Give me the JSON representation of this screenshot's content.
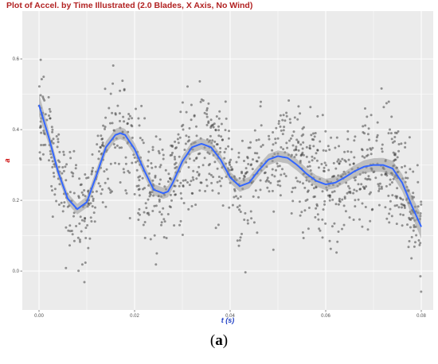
{
  "chart_data": {
    "type": "scatter",
    "title": "Plot of Accel. by Time Illustrated (2.0 Blades, X Axis, No Wind)",
    "xlabel": "t (s)",
    "ylabel": "a",
    "xlim": [
      -0.0035,
      0.0825
    ],
    "ylim": [
      -0.11,
      0.735
    ],
    "x_ticks": [
      0.0,
      0.02,
      0.04,
      0.06,
      0.08
    ],
    "x_tick_labels": [
      "0.00",
      "0.02",
      "0.04",
      "0.06",
      "0.08"
    ],
    "y_ticks": [
      0.0,
      0.2,
      0.4,
      0.6
    ],
    "y_tick_labels": [
      "0.0",
      "0.2",
      "0.4",
      "0.6"
    ],
    "grid": true,
    "colors": {
      "panel": "#ebebeb",
      "grid": "#ffffff",
      "points": "#333333",
      "smooth_line": "#3366ff",
      "confidence_band": "#999999",
      "title": "#b22222",
      "x_label": "#1f3fc4",
      "y_label": "#cc0000"
    },
    "series": [
      {
        "type": "scatter",
        "x_range": [
          0.0,
          0.08
        ],
        "point_count": 1200,
        "y_spread": 0.115
      },
      {
        "type": "smooth",
        "x": [
          0.0,
          0.002,
          0.004,
          0.006,
          0.008,
          0.01,
          0.012,
          0.014,
          0.016,
          0.017,
          0.018,
          0.02,
          0.022,
          0.024,
          0.026,
          0.027,
          0.028,
          0.03,
          0.032,
          0.034,
          0.036,
          0.038,
          0.04,
          0.042,
          0.044,
          0.046,
          0.048,
          0.05,
          0.052,
          0.054,
          0.056,
          0.058,
          0.06,
          0.062,
          0.064,
          0.066,
          0.068,
          0.07,
          0.072,
          0.074,
          0.076,
          0.078,
          0.08
        ],
        "y": [
          0.47,
          0.38,
          0.28,
          0.205,
          0.175,
          0.195,
          0.27,
          0.35,
          0.385,
          0.39,
          0.385,
          0.345,
          0.285,
          0.23,
          0.22,
          0.225,
          0.25,
          0.31,
          0.35,
          0.36,
          0.35,
          0.315,
          0.265,
          0.24,
          0.25,
          0.285,
          0.315,
          0.325,
          0.32,
          0.3,
          0.275,
          0.255,
          0.245,
          0.25,
          0.265,
          0.282,
          0.295,
          0.3,
          0.3,
          0.29,
          0.25,
          0.185,
          0.125
        ],
        "ci_halfwidth": [
          0.032,
          0.02,
          0.016,
          0.015,
          0.015,
          0.016,
          0.017,
          0.017,
          0.017,
          0.017,
          0.017,
          0.017,
          0.016,
          0.016,
          0.016,
          0.016,
          0.016,
          0.016,
          0.016,
          0.016,
          0.016,
          0.016,
          0.016,
          0.016,
          0.016,
          0.016,
          0.016,
          0.016,
          0.016,
          0.016,
          0.016,
          0.016,
          0.016,
          0.016,
          0.016,
          0.017,
          0.018,
          0.019,
          0.02,
          0.022,
          0.024,
          0.028,
          0.034
        ]
      }
    ]
  },
  "caption": {
    "open": "(",
    "letter": "a",
    "close": ")"
  }
}
